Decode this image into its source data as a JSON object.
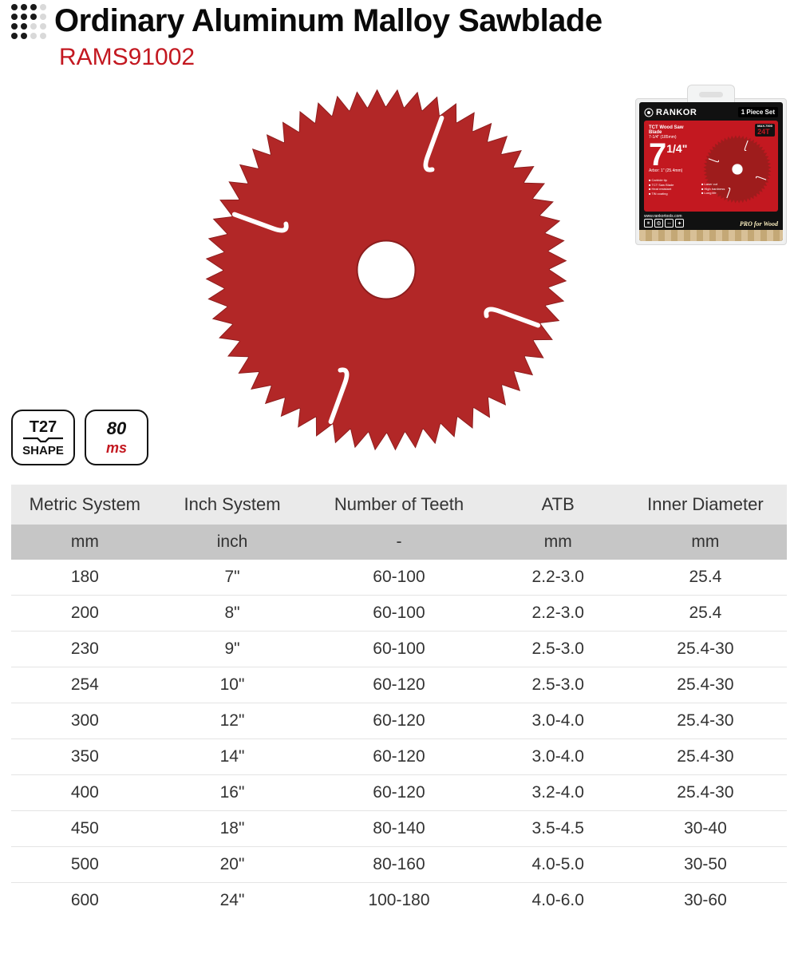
{
  "colors": {
    "accent": "#c31820",
    "text": "#333333",
    "black": "#0a0a0a",
    "header_bg": "#eaeaea",
    "units_bg": "#c6c6c6",
    "row_border": "#e4e4e4",
    "blade": "#b22727",
    "blade_shadow": "#8c1d1d",
    "dot_dark": "#1a1a1a",
    "dot_light": "#d9d9d9"
  },
  "header": {
    "title": "Ordinary Aluminum Malloy Sawblade",
    "model": "RAMS91002"
  },
  "badges": {
    "shape": {
      "line1": "T27",
      "line2": "SHAPE"
    },
    "speed": {
      "line1": "80",
      "line2": "ms"
    }
  },
  "package": {
    "brand": "RANKOR",
    "set_label": "1 Piece Set",
    "subtitle": "TCT Wood Saw Blade",
    "size_line": "7-1/4\" (185mm)",
    "big": "7",
    "big_frac": "1/4\"",
    "arbor": "Arbor: 1\" (25.4mm)",
    "teeth_badge": "24T",
    "teeth_sub": "MAX.7000",
    "bullets": [
      "Carbide tip",
      "TCT Saw Blade",
      "Heat resistant",
      "TiN coating"
    ],
    "right_bullets": [
      "Laser cut",
      "High hardness",
      "Long life"
    ],
    "url": "www.rankortools.com",
    "wood_label": "PRO for Wood"
  },
  "blade": {
    "teeth": 56,
    "expansion_slots": 4,
    "outer_r": 235,
    "inner_r": 38,
    "tooth_depth": 22,
    "fill": "#b22727",
    "edge": "#8c1d1d",
    "center": "#ffffff"
  },
  "table": {
    "columns": [
      "Metric System",
      "Inch System",
      "Number of Teeth",
      "ATB",
      "Inner Diameter"
    ],
    "units": [
      "mm",
      "inch",
      "-",
      "mm",
      "mm"
    ],
    "rows": [
      [
        "180",
        "7\"",
        "60-100",
        "2.2-3.0",
        "25.4"
      ],
      [
        "200",
        "8\"",
        "60-100",
        "2.2-3.0",
        "25.4"
      ],
      [
        "230",
        "9\"",
        "60-100",
        "2.5-3.0",
        "25.4-30"
      ],
      [
        "254",
        "10\"",
        "60-120",
        "2.5-3.0",
        "25.4-30"
      ],
      [
        "300",
        "12\"",
        "60-120",
        "3.0-4.0",
        "25.4-30"
      ],
      [
        "350",
        "14\"",
        "60-120",
        "3.0-4.0",
        "25.4-30"
      ],
      [
        "400",
        "16\"",
        "60-120",
        "3.2-4.0",
        "25.4-30"
      ],
      [
        "450",
        "18\"",
        "80-140",
        "3.5-4.5",
        "30-40"
      ],
      [
        "500",
        "20\"",
        "80-160",
        "4.0-5.0",
        "30-50"
      ],
      [
        "600",
        "24\"",
        "100-180",
        "4.0-6.0",
        "30-60"
      ]
    ]
  }
}
